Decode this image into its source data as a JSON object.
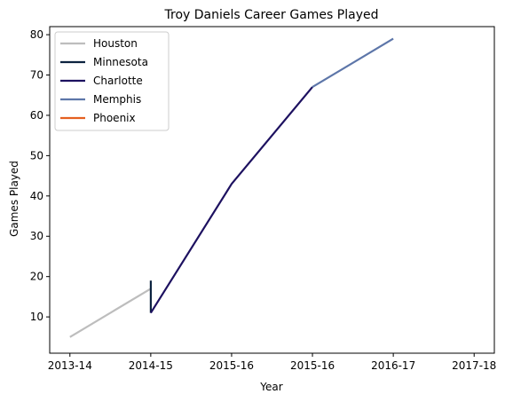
{
  "chart_data": {
    "type": "line",
    "title": "Troy Daniels Career Games Played",
    "xlabel": "Year",
    "ylabel": "Games Played",
    "x_ticks": [
      "2013-14",
      "2014-15",
      "2015-16",
      "2015-16",
      "2016-17",
      "2017-18"
    ],
    "xlim": [
      -0.25,
      5.25
    ],
    "ylim": [
      1,
      82
    ],
    "y_ticks": [
      10,
      20,
      30,
      40,
      50,
      60,
      70,
      80
    ],
    "grid": false,
    "legend_position": "top-left",
    "series": [
      {
        "name": "Houston",
        "color": "#bdbdbd",
        "points": [
          [
            0,
            5
          ],
          [
            1.0,
            17
          ]
        ]
      },
      {
        "name": "Minnesota",
        "color": "#0c2340",
        "points": [
          [
            1.0,
            19
          ],
          [
            1.0,
            11
          ]
        ]
      },
      {
        "name": "Charlotte",
        "color": "#1d1160",
        "points": [
          [
            1.0,
            11
          ],
          [
            2.0,
            43
          ],
          [
            3.0,
            67
          ]
        ]
      },
      {
        "name": "Memphis",
        "color": "#5d76a9",
        "points": [
          [
            3.0,
            67
          ],
          [
            4.0,
            79
          ]
        ]
      },
      {
        "name": "Phoenix",
        "color": "#e56020",
        "points": []
      }
    ]
  }
}
